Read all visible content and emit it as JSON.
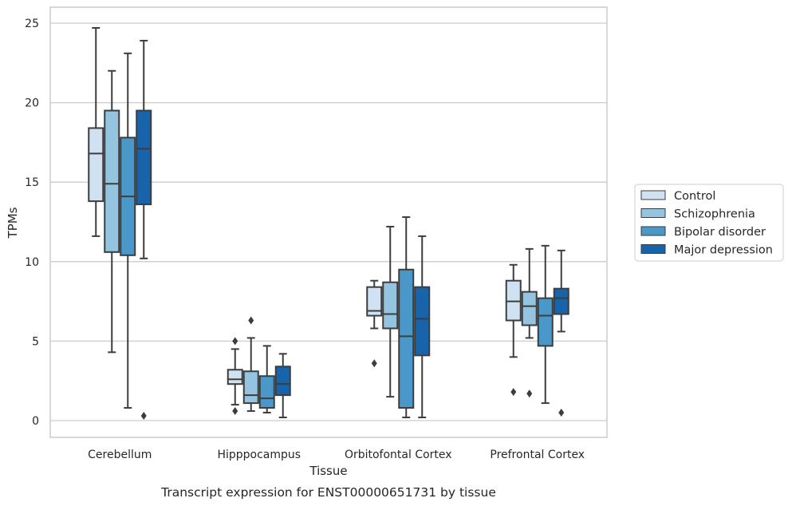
{
  "chart_data": {
    "type": "box",
    "title": "Transcript expression for ENST00000651731 by tissue",
    "xlabel": "Tissue",
    "ylabel": "TPMs",
    "ylim": [
      -1,
      26
    ],
    "yticks": [
      0,
      5,
      10,
      15,
      20,
      25
    ],
    "grid": "horizontal",
    "legend_position": "right",
    "categories": [
      "Cerebellum",
      "Hipppocampus",
      "Orbitofontal Cortex",
      "Prefrontal Cortex"
    ],
    "series": [
      {
        "name": "Control",
        "color": "#d0e1f2",
        "boxes": [
          {
            "min": 11.6,
            "q1": 13.8,
            "median": 16.8,
            "q3": 18.4,
            "max": 24.7,
            "outliers": []
          },
          {
            "min": 1.0,
            "q1": 2.3,
            "median": 2.6,
            "q3": 3.2,
            "max": 4.5,
            "outliers": [
              5.0,
              0.6
            ]
          },
          {
            "min": 5.8,
            "q1": 6.6,
            "median": 6.9,
            "q3": 8.4,
            "max": 8.8,
            "outliers": [
              3.6
            ]
          },
          {
            "min": 4.0,
            "q1": 6.3,
            "median": 7.5,
            "q3": 8.8,
            "max": 9.8,
            "outliers": [
              1.8
            ]
          }
        ]
      },
      {
        "name": "Schizophrenia",
        "color": "#94c4df",
        "boxes": [
          {
            "min": 4.3,
            "q1": 10.6,
            "median": 14.9,
            "q3": 19.5,
            "max": 22.0,
            "outliers": []
          },
          {
            "min": 0.6,
            "q1": 1.1,
            "median": 1.6,
            "q3": 3.1,
            "max": 5.2,
            "outliers": [
              6.3
            ]
          },
          {
            "min": 1.5,
            "q1": 5.8,
            "median": 6.7,
            "q3": 8.7,
            "max": 12.2,
            "outliers": []
          },
          {
            "min": 5.2,
            "q1": 6.0,
            "median": 7.2,
            "q3": 8.1,
            "max": 10.8,
            "outliers": [
              1.7
            ]
          }
        ]
      },
      {
        "name": "Bipolar disorder",
        "color": "#4a98c9",
        "boxes": [
          {
            "min": 0.8,
            "q1": 10.4,
            "median": 14.1,
            "q3": 17.8,
            "max": 23.1,
            "outliers": []
          },
          {
            "min": 0.5,
            "q1": 0.8,
            "median": 1.4,
            "q3": 2.8,
            "max": 4.7,
            "outliers": []
          },
          {
            "min": 0.2,
            "q1": 0.8,
            "median": 5.3,
            "q3": 9.5,
            "max": 12.8,
            "outliers": []
          },
          {
            "min": 1.1,
            "q1": 4.7,
            "median": 6.6,
            "q3": 7.7,
            "max": 11.0,
            "outliers": []
          }
        ]
      },
      {
        "name": "Major depression",
        "color": "#1764ab",
        "boxes": [
          {
            "min": 10.2,
            "q1": 13.6,
            "median": 17.1,
            "q3": 19.5,
            "max": 23.9,
            "outliers": [
              0.3
            ]
          },
          {
            "min": 0.2,
            "q1": 1.6,
            "median": 2.3,
            "q3": 3.4,
            "max": 4.2,
            "outliers": []
          },
          {
            "min": 0.2,
            "q1": 4.1,
            "median": 6.4,
            "q3": 8.4,
            "max": 11.6,
            "outliers": []
          },
          {
            "min": 5.6,
            "q1": 6.7,
            "median": 7.7,
            "q3": 8.3,
            "max": 10.7,
            "outliers": [
              0.5
            ]
          }
        ]
      }
    ]
  }
}
